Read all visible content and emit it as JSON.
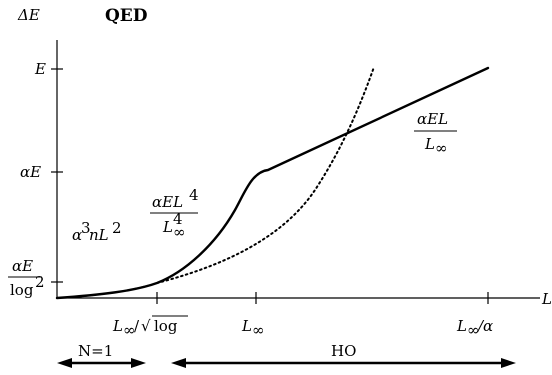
{
  "title": "QED",
  "y_axis_label": "ΔE",
  "x_axis_label": "L",
  "y_ticks": {
    "E": "E",
    "alphaE": "αE",
    "alphaE_over_log2": {
      "num": "αE",
      "den": "log",
      "den_sup": "2"
    }
  },
  "x_ticks": {
    "L_inf_sqrt_log": {
      "base": "L",
      "sub": "∞",
      "slash": "/",
      "root": "√",
      "radicand": "log"
    },
    "L_inf": {
      "base": "L",
      "sub": "∞"
    },
    "L_inf_over_alpha": {
      "base": "L",
      "sub": "∞",
      "tail": "/α"
    }
  },
  "curve_labels": {
    "alpha3nL2": {
      "base": "α",
      "sup1": "3",
      "mid": "nL",
      "sup2": "2"
    },
    "alphaEL4_frac": {
      "num": "αEL",
      "num_sup": "4",
      "den": "L",
      "den_sup": "4",
      "den_sub": "∞"
    },
    "alphaEL_frac": {
      "num": "αEL",
      "den": "L",
      "den_sub": "∞"
    }
  },
  "ranges": {
    "low": {
      "label": "N=1"
    },
    "high": {
      "label": "HO"
    }
  }
}
